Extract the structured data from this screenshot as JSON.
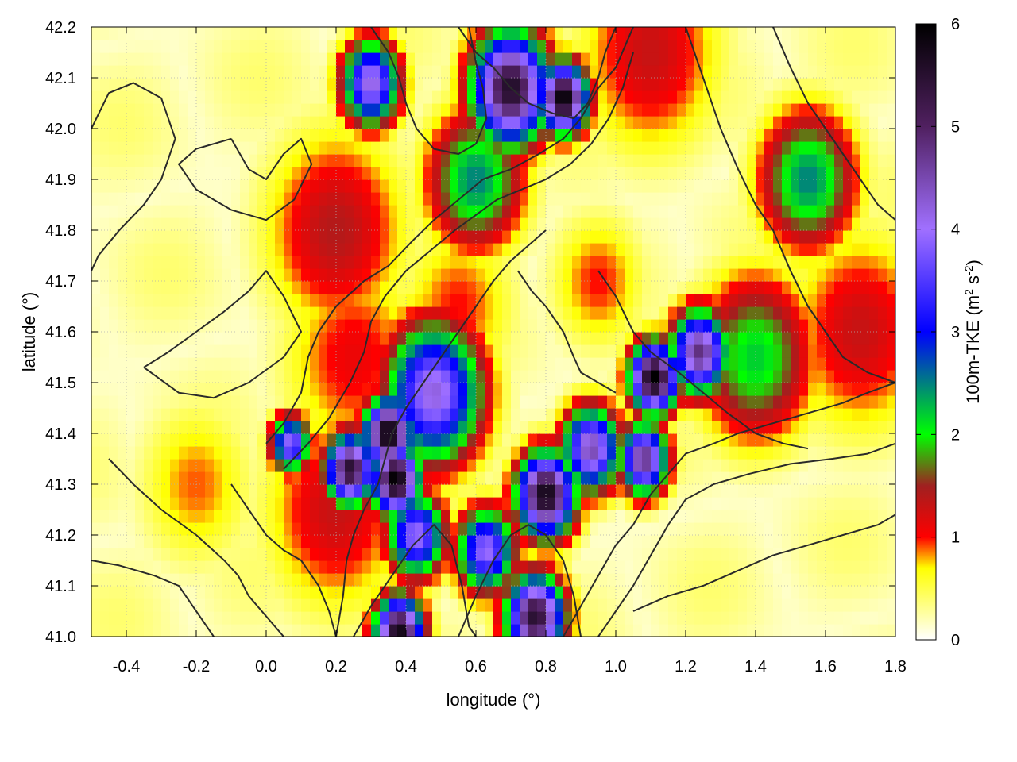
{
  "chart_data": {
    "type": "heatmap",
    "title": "",
    "xlabel": "longitude (°)",
    "ylabel": "latitude (°)",
    "colorbar_label": "100m-TKE (m² s⁻²)",
    "colorbar_label_parts": {
      "base": "100m-TKE (m",
      "sup1": "2",
      "mid": " s",
      "sup2": "-2",
      "end": ")"
    },
    "xlim": [
      -0.5,
      1.8
    ],
    "ylim": [
      41.0,
      42.2
    ],
    "zlim": [
      0,
      6
    ],
    "x_ticks": [
      "-0.4",
      "-0.2",
      "0.0",
      "0.2",
      "0.4",
      "0.6",
      "0.8",
      "1.0",
      "1.2",
      "1.4",
      "1.6",
      "1.8"
    ],
    "x_tick_values": [
      -0.4,
      -0.2,
      0.0,
      0.2,
      0.4,
      0.6,
      0.8,
      1.0,
      1.2,
      1.4,
      1.6,
      1.8
    ],
    "y_ticks": [
      "41.0",
      "41.1",
      "41.2",
      "41.3",
      "41.4",
      "41.5",
      "41.6",
      "41.7",
      "41.8",
      "41.9",
      "42.0",
      "42.1",
      "42.2"
    ],
    "y_tick_values": [
      41.0,
      41.1,
      41.2,
      41.3,
      41.4,
      41.5,
      41.6,
      41.7,
      41.8,
      41.9,
      42.0,
      42.1,
      42.2
    ],
    "colorbar_ticks": [
      "0",
      "1",
      "2",
      "3",
      "4",
      "5",
      "6"
    ],
    "colorbar_tick_values": [
      0,
      1,
      2,
      3,
      4,
      5,
      6
    ],
    "grid": true,
    "palette": [
      [
        0.0,
        "#ffffff"
      ],
      [
        0.7,
        "#ffff00"
      ],
      [
        1.0,
        "#ff0000"
      ],
      [
        1.5,
        "#a02020"
      ],
      [
        2.0,
        "#00ff00"
      ],
      [
        3.0,
        "#0000ff"
      ],
      [
        4.0,
        "#a070ff"
      ],
      [
        5.0,
        "#502060"
      ],
      [
        6.0,
        "#000000"
      ]
    ],
    "hotspots": [
      {
        "lon": 0.35,
        "lat": 41.4,
        "value": 6.0,
        "spread": 0.05
      },
      {
        "lon": 0.37,
        "lat": 41.31,
        "value": 6.0,
        "spread": 0.05
      },
      {
        "lon": 0.24,
        "lat": 41.33,
        "value": 5.5,
        "spread": 0.05
      },
      {
        "lon": 0.48,
        "lat": 41.48,
        "value": 4.2,
        "spread": 0.1
      },
      {
        "lon": 0.8,
        "lat": 41.28,
        "value": 5.8,
        "spread": 0.06
      },
      {
        "lon": 0.93,
        "lat": 41.37,
        "value": 4.5,
        "spread": 0.06
      },
      {
        "lon": 1.08,
        "lat": 41.35,
        "value": 4.8,
        "spread": 0.05
      },
      {
        "lon": 1.11,
        "lat": 41.51,
        "value": 6.0,
        "spread": 0.05
      },
      {
        "lon": 1.24,
        "lat": 41.56,
        "value": 4.8,
        "spread": 0.06
      },
      {
        "lon": 0.7,
        "lat": 42.08,
        "value": 5.6,
        "spread": 0.08
      },
      {
        "lon": 0.85,
        "lat": 42.06,
        "value": 6.0,
        "spread": 0.05
      },
      {
        "lon": 0.3,
        "lat": 42.09,
        "value": 4.2,
        "spread": 0.06
      },
      {
        "lon": 0.77,
        "lat": 41.04,
        "value": 5.5,
        "spread": 0.06
      },
      {
        "lon": 0.38,
        "lat": 41.01,
        "value": 5.8,
        "spread": 0.05
      },
      {
        "lon": 0.63,
        "lat": 41.17,
        "value": 4.0,
        "spread": 0.06
      },
      {
        "lon": 0.43,
        "lat": 41.2,
        "value": 4.0,
        "spread": 0.06
      },
      {
        "lon": 0.07,
        "lat": 41.38,
        "value": 4.0,
        "spread": 0.04
      },
      {
        "lon": 1.55,
        "lat": 41.9,
        "value": 2.5,
        "spread": 0.1
      },
      {
        "lon": 1.4,
        "lat": 41.55,
        "value": 2.2,
        "spread": 0.12
      },
      {
        "lon": 0.6,
        "lat": 41.9,
        "value": 2.5,
        "spread": 0.1
      },
      {
        "lon": 0.2,
        "lat": 41.8,
        "value": 1.4,
        "spread": 0.15
      },
      {
        "lon": 1.7,
        "lat": 41.6,
        "value": 1.3,
        "spread": 0.15
      },
      {
        "lon": 0.25,
        "lat": 41.55,
        "value": 1.1,
        "spread": 0.15
      },
      {
        "lon": 0.2,
        "lat": 41.25,
        "value": 1.3,
        "spread": 0.15
      },
      {
        "lon": 0.55,
        "lat": 41.65,
        "value": 1.0,
        "spread": 0.12
      },
      {
        "lon": 1.1,
        "lat": 42.15,
        "value": 1.3,
        "spread": 0.15
      },
      {
        "lon": -0.2,
        "lat": 41.3,
        "value": 0.9,
        "spread": 0.12
      },
      {
        "lon": 0.95,
        "lat": 41.7,
        "value": 1.0,
        "spread": 0.1
      }
    ],
    "contour_lines": [
      [
        [
          -0.5,
          42.0
        ],
        [
          -0.45,
          42.07
        ],
        [
          -0.38,
          42.09
        ],
        [
          -0.3,
          42.06
        ],
        [
          -0.26,
          41.98
        ],
        [
          -0.3,
          41.9
        ],
        [
          -0.35,
          41.85
        ],
        [
          -0.42,
          41.8
        ],
        [
          -0.48,
          41.75
        ],
        [
          -0.5,
          41.72
        ]
      ],
      [
        [
          -0.1,
          41.98
        ],
        [
          -0.05,
          41.92
        ],
        [
          0.0,
          41.9
        ],
        [
          0.05,
          41.95
        ],
        [
          0.1,
          41.98
        ],
        [
          0.13,
          41.93
        ],
        [
          0.08,
          41.86
        ],
        [
          0.0,
          41.82
        ],
        [
          -0.1,
          41.84
        ],
        [
          -0.2,
          41.88
        ],
        [
          -0.25,
          41.93
        ],
        [
          -0.2,
          41.96
        ],
        [
          -0.1,
          41.98
        ]
      ],
      [
        [
          -0.35,
          41.53
        ],
        [
          -0.28,
          41.56
        ],
        [
          -0.2,
          41.6
        ],
        [
          -0.12,
          41.64
        ],
        [
          -0.05,
          41.68
        ],
        [
          0.0,
          41.72
        ],
        [
          0.05,
          41.67
        ],
        [
          0.1,
          41.6
        ],
        [
          0.05,
          41.55
        ],
        [
          -0.05,
          41.5
        ],
        [
          -0.15,
          41.47
        ],
        [
          -0.25,
          41.48
        ],
        [
          -0.35,
          41.53
        ]
      ],
      [
        [
          -0.45,
          41.35
        ],
        [
          -0.38,
          41.3
        ],
        [
          -0.3,
          41.25
        ],
        [
          -0.2,
          41.2
        ],
        [
          -0.12,
          41.15
        ],
        [
          -0.08,
          41.12
        ],
        [
          -0.05,
          41.08
        ],
        [
          0.0,
          41.04
        ],
        [
          0.05,
          41.0
        ]
      ],
      [
        [
          -0.5,
          41.15
        ],
        [
          -0.42,
          41.14
        ],
        [
          -0.32,
          41.12
        ],
        [
          -0.25,
          41.1
        ],
        [
          -0.2,
          41.05
        ],
        [
          -0.15,
          41.0
        ]
      ],
      [
        [
          0.0,
          41.38
        ],
        [
          0.05,
          41.42
        ],
        [
          0.1,
          41.48
        ],
        [
          0.12,
          41.55
        ],
        [
          0.15,
          41.6
        ],
        [
          0.2,
          41.65
        ],
        [
          0.28,
          41.7
        ],
        [
          0.35,
          41.73
        ],
        [
          0.42,
          41.78
        ],
        [
          0.48,
          41.82
        ],
        [
          0.55,
          41.86
        ],
        [
          0.62,
          41.9
        ],
        [
          0.7,
          41.92
        ],
        [
          0.78,
          41.95
        ],
        [
          0.85,
          41.98
        ],
        [
          0.9,
          42.02
        ],
        [
          0.95,
          42.08
        ],
        [
          1.0,
          42.12
        ],
        [
          1.05,
          42.2
        ]
      ],
      [
        [
          0.05,
          41.33
        ],
        [
          0.12,
          41.38
        ],
        [
          0.18,
          41.43
        ],
        [
          0.24,
          41.5
        ],
        [
          0.28,
          41.56
        ],
        [
          0.3,
          41.62
        ],
        [
          0.34,
          41.67
        ],
        [
          0.4,
          41.72
        ],
        [
          0.47,
          41.76
        ],
        [
          0.54,
          41.8
        ],
        [
          0.6,
          41.83
        ],
        [
          0.66,
          41.86
        ],
        [
          0.73,
          41.88
        ],
        [
          0.8,
          41.9
        ],
        [
          0.87,
          41.93
        ],
        [
          0.93,
          41.97
        ],
        [
          0.98,
          42.02
        ],
        [
          1.02,
          42.08
        ],
        [
          1.05,
          42.15
        ]
      ],
      [
        [
          0.2,
          41.0
        ],
        [
          0.22,
          41.08
        ],
        [
          0.23,
          41.15
        ],
        [
          0.25,
          41.2
        ],
        [
          0.28,
          41.25
        ],
        [
          0.32,
          41.3
        ],
        [
          0.34,
          41.35
        ],
        [
          0.36,
          41.4
        ],
        [
          0.4,
          41.45
        ],
        [
          0.45,
          41.5
        ],
        [
          0.5,
          41.55
        ],
        [
          0.55,
          41.6
        ],
        [
          0.6,
          41.65
        ],
        [
          0.65,
          41.7
        ],
        [
          0.7,
          41.74
        ],
        [
          0.75,
          41.77
        ],
        [
          0.8,
          41.8
        ]
      ],
      [
        [
          0.25,
          41.0
        ],
        [
          0.3,
          41.06
        ],
        [
          0.36,
          41.12
        ],
        [
          0.42,
          41.18
        ],
        [
          0.48,
          41.22
        ],
        [
          0.53,
          41.18
        ],
        [
          0.56,
          41.1
        ],
        [
          0.58,
          41.02
        ],
        [
          0.6,
          41.0
        ]
      ],
      [
        [
          0.55,
          41.0
        ],
        [
          0.6,
          41.08
        ],
        [
          0.65,
          41.15
        ],
        [
          0.7,
          41.2
        ],
        [
          0.75,
          41.22
        ],
        [
          0.8,
          41.2
        ],
        [
          0.85,
          41.15
        ],
        [
          0.88,
          41.08
        ],
        [
          0.9,
          41.0
        ]
      ],
      [
        [
          0.85,
          41.0
        ],
        [
          0.9,
          41.06
        ],
        [
          0.95,
          41.12
        ],
        [
          1.0,
          41.18
        ],
        [
          1.05,
          41.22
        ],
        [
          1.1,
          41.28
        ],
        [
          1.15,
          41.32
        ],
        [
          1.2,
          41.36
        ],
        [
          1.28,
          41.38
        ],
        [
          1.35,
          41.4
        ],
        [
          1.45,
          41.42
        ],
        [
          1.55,
          41.44
        ],
        [
          1.65,
          41.46
        ],
        [
          1.72,
          41.48
        ],
        [
          1.8,
          41.5
        ]
      ],
      [
        [
          0.95,
          41.0
        ],
        [
          1.0,
          41.05
        ],
        [
          1.05,
          41.1
        ],
        [
          1.1,
          41.16
        ],
        [
          1.15,
          41.22
        ],
        [
          1.2,
          41.27
        ],
        [
          1.28,
          41.3
        ],
        [
          1.38,
          41.32
        ],
        [
          1.5,
          41.34
        ],
        [
          1.62,
          41.35
        ],
        [
          1.72,
          41.36
        ],
        [
          1.8,
          41.38
        ]
      ],
      [
        [
          1.05,
          41.05
        ],
        [
          1.15,
          41.08
        ],
        [
          1.25,
          41.1
        ],
        [
          1.35,
          41.13
        ],
        [
          1.45,
          41.16
        ],
        [
          1.55,
          41.18
        ],
        [
          1.65,
          41.2
        ],
        [
          1.75,
          41.22
        ],
        [
          1.8,
          41.24
        ]
      ],
      [
        [
          0.95,
          41.72
        ],
        [
          1.0,
          41.67
        ],
        [
          1.05,
          41.6
        ],
        [
          1.1,
          41.56
        ],
        [
          1.18,
          41.52
        ],
        [
          1.25,
          41.48
        ],
        [
          1.32,
          41.44
        ],
        [
          1.4,
          41.4
        ],
        [
          1.48,
          41.38
        ],
        [
          1.55,
          41.37
        ]
      ],
      [
        [
          1.2,
          42.2
        ],
        [
          1.25,
          42.1
        ],
        [
          1.3,
          42.0
        ],
        [
          1.35,
          41.92
        ],
        [
          1.4,
          41.85
        ],
        [
          1.45,
          41.8
        ],
        [
          1.5,
          41.72
        ],
        [
          1.55,
          41.65
        ],
        [
          1.6,
          41.6
        ],
        [
          1.65,
          41.55
        ],
        [
          1.72,
          41.52
        ],
        [
          1.8,
          41.5
        ]
      ],
      [
        [
          1.45,
          42.2
        ],
        [
          1.5,
          42.12
        ],
        [
          1.55,
          42.05
        ],
        [
          1.6,
          42.0
        ],
        [
          1.65,
          41.95
        ],
        [
          1.7,
          41.9
        ],
        [
          1.75,
          41.85
        ],
        [
          1.8,
          41.82
        ]
      ],
      [
        [
          0.55,
          42.2
        ],
        [
          0.6,
          42.15
        ],
        [
          0.65,
          42.12
        ],
        [
          0.7,
          42.08
        ],
        [
          0.75,
          42.05
        ],
        [
          0.82,
          42.03
        ],
        [
          0.88,
          42.02
        ],
        [
          0.92,
          42.05
        ],
        [
          0.95,
          42.1
        ],
        [
          0.97,
          42.15
        ],
        [
          1.0,
          42.2
        ]
      ],
      [
        [
          0.3,
          42.2
        ],
        [
          0.35,
          42.15
        ],
        [
          0.38,
          42.1
        ],
        [
          0.4,
          42.05
        ],
        [
          0.43,
          42.0
        ],
        [
          0.48,
          41.96
        ],
        [
          0.55,
          41.95
        ],
        [
          0.6,
          41.97
        ],
        [
          0.63,
          42.02
        ],
        [
          0.62,
          42.08
        ],
        [
          0.6,
          42.13
        ],
        [
          0.58,
          42.2
        ]
      ],
      [
        [
          0.72,
          41.72
        ],
        [
          0.76,
          41.68
        ],
        [
          0.8,
          41.65
        ],
        [
          0.85,
          41.6
        ],
        [
          0.88,
          41.55
        ],
        [
          0.9,
          41.52
        ],
        [
          0.95,
          41.5
        ],
        [
          1.0,
          41.48
        ]
      ],
      [
        [
          -0.1,
          41.3
        ],
        [
          -0.05,
          41.25
        ],
        [
          0.0,
          41.2
        ],
        [
          0.05,
          41.17
        ],
        [
          0.1,
          41.15
        ],
        [
          0.15,
          41.1
        ],
        [
          0.18,
          41.05
        ],
        [
          0.2,
          41.0
        ]
      ]
    ]
  }
}
